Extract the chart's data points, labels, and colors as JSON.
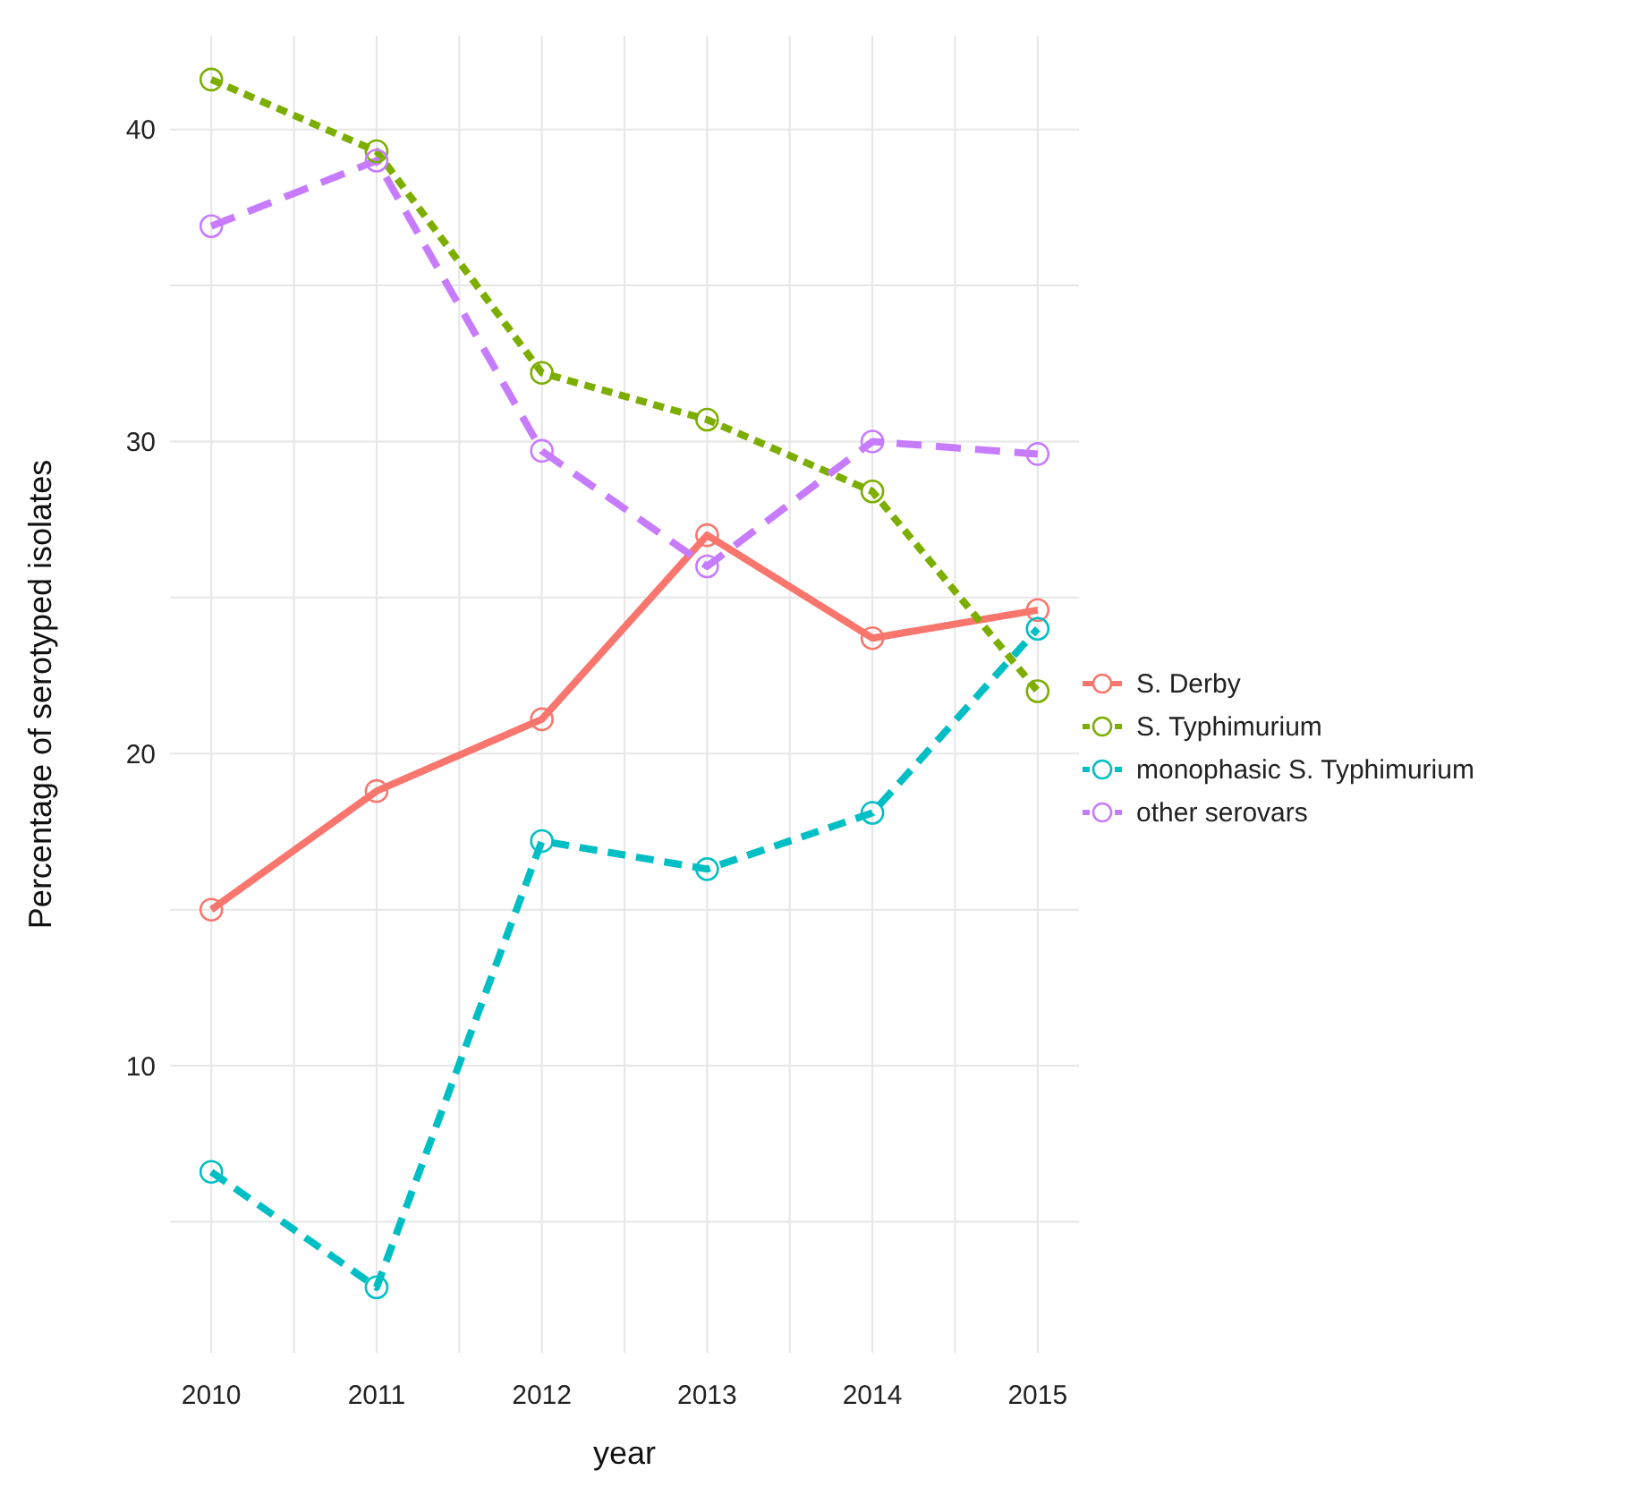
{
  "chart_data": {
    "type": "line",
    "xlabel": "year",
    "ylabel": "Percentage of serotyped isolates",
    "x": [
      2010,
      2011,
      2012,
      2013,
      2014,
      2015
    ],
    "xlim": [
      2009.75,
      2015.25
    ],
    "xticks": [
      2010,
      {
        "value": 2010.5,
        "label": null
      },
      2011,
      {
        "value": 2011.5,
        "label": null
      },
      2012,
      {
        "value": 2012.5,
        "label": null
      },
      2013,
      {
        "value": 2013.5,
        "label": null
      },
      2014,
      {
        "value": 2014.5,
        "label": null
      },
      2015
    ],
    "ylim": [
      0.8,
      43
    ],
    "yticks": [
      {
        "value": 5,
        "label": null
      },
      10,
      {
        "value": 15,
        "label": null
      },
      20,
      {
        "value": 25,
        "label": null
      },
      30,
      {
        "value": 35,
        "label": null
      },
      40
    ],
    "grid": true,
    "legend": "right",
    "marker": "circle",
    "series": [
      {
        "name": "S. Derby",
        "color": "#f8766d",
        "line_style": "solid",
        "values": [
          15.0,
          18.8,
          21.1,
          27.0,
          23.7,
          24.6
        ]
      },
      {
        "name": "S. Typhimurium",
        "color": "#7cae00",
        "line_style": "dotted",
        "values": [
          41.6,
          39.3,
          32.2,
          30.7,
          28.4,
          22.0
        ]
      },
      {
        "name": "monophasic S. Typhimurium",
        "color": "#00bfc4",
        "line_style": "dashed",
        "values": [
          6.6,
          2.9,
          17.2,
          16.3,
          18.1,
          24.0
        ]
      },
      {
        "name": "other serovars",
        "color": "#c77cff",
        "line_style": "dashed",
        "values": [
          36.9,
          39.0,
          29.7,
          26.0,
          30.0,
          29.6
        ]
      }
    ]
  }
}
